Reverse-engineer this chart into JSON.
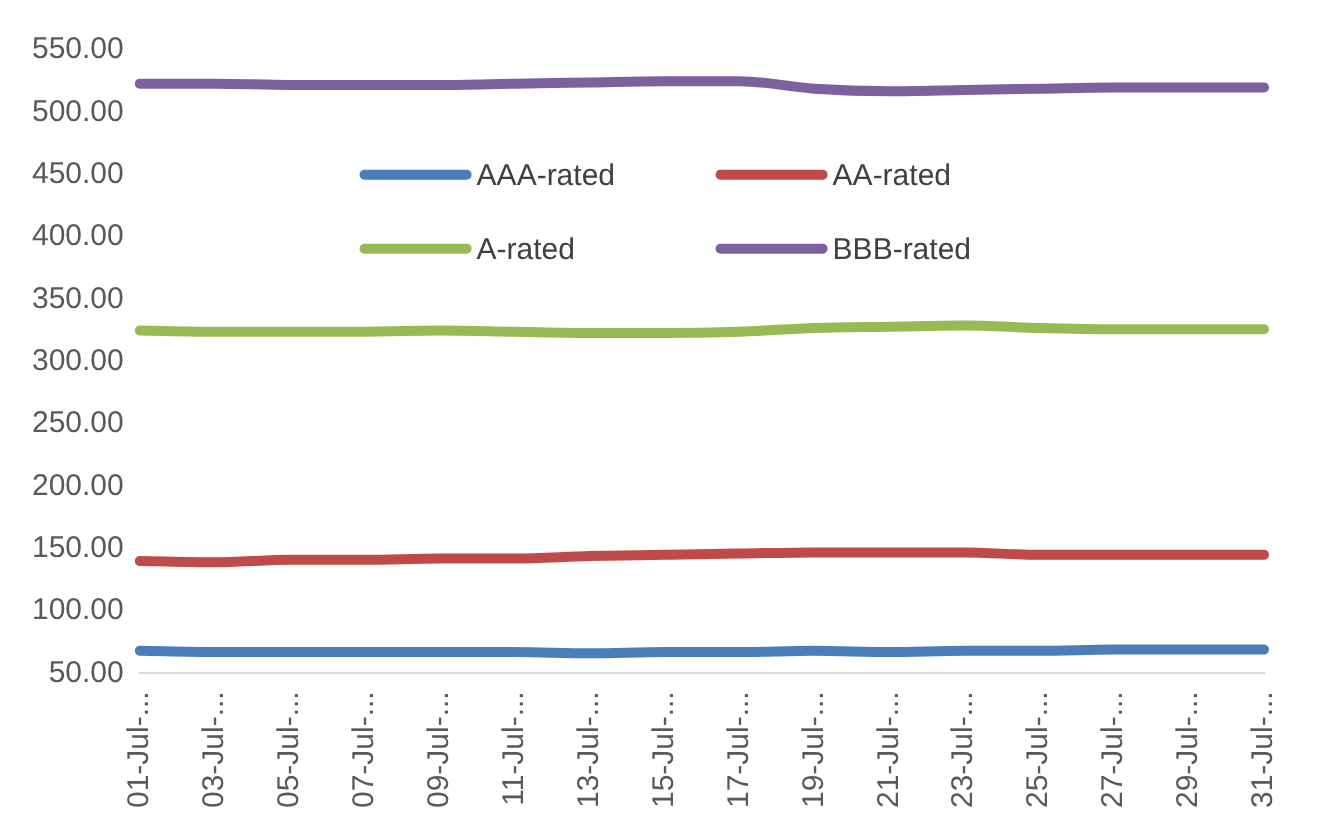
{
  "chart_data": {
    "type": "line",
    "categories": [
      "01-Jul-...",
      "03-Jul-...",
      "05-Jul-...",
      "07-Jul-...",
      "09-Jul-...",
      "11-Jul-...",
      "13-Jul-...",
      "15-Jul-...",
      "17-Jul-...",
      "19-Jul-...",
      "21-Jul-...",
      "23-Jul-...",
      "25-Jul-...",
      "27-Jul-...",
      "29-Jul-...",
      "31-Jul-..."
    ],
    "series": [
      {
        "name": "AAA-rated",
        "color": "#4a7ebb",
        "values": [
          68,
          67,
          67,
          67,
          67,
          67,
          66,
          67,
          67,
          68,
          67,
          68,
          68,
          69,
          69,
          69
        ]
      },
      {
        "name": "AA-rated",
        "color": "#be4b48",
        "values": [
          140,
          139,
          141,
          141,
          142,
          142,
          144,
          145,
          146,
          147,
          147,
          147,
          145,
          145,
          145,
          145
        ]
      },
      {
        "name": "A-rated",
        "color": "#98b954",
        "values": [
          325,
          324,
          324,
          324,
          325,
          324,
          323,
          323,
          324,
          327,
          328,
          329,
          327,
          326,
          326,
          326
        ]
      },
      {
        "name": "BBB-rated",
        "color": "#7d60a0",
        "values": [
          523,
          523,
          522,
          522,
          522,
          523,
          524,
          525,
          525,
          519,
          517,
          518,
          519,
          520,
          520,
          520
        ]
      }
    ],
    "ylim": [
      50,
      550
    ],
    "yticks": [
      {
        "value": 50,
        "label": "50.00"
      },
      {
        "value": 100,
        "label": "100.00"
      },
      {
        "value": 150,
        "label": "150.00"
      },
      {
        "value": 200,
        "label": "200.00"
      },
      {
        "value": 250,
        "label": "250.00"
      },
      {
        "value": 300,
        "label": "300.00"
      },
      {
        "value": 350,
        "label": "350.00"
      },
      {
        "value": 400,
        "label": "400.00"
      },
      {
        "value": 450,
        "label": "450.00"
      },
      {
        "value": 500,
        "label": "500.00"
      },
      {
        "value": 550,
        "label": "550.00"
      }
    ],
    "grid": false,
    "legend": "top",
    "marker": "none",
    "line_style": "solid"
  }
}
